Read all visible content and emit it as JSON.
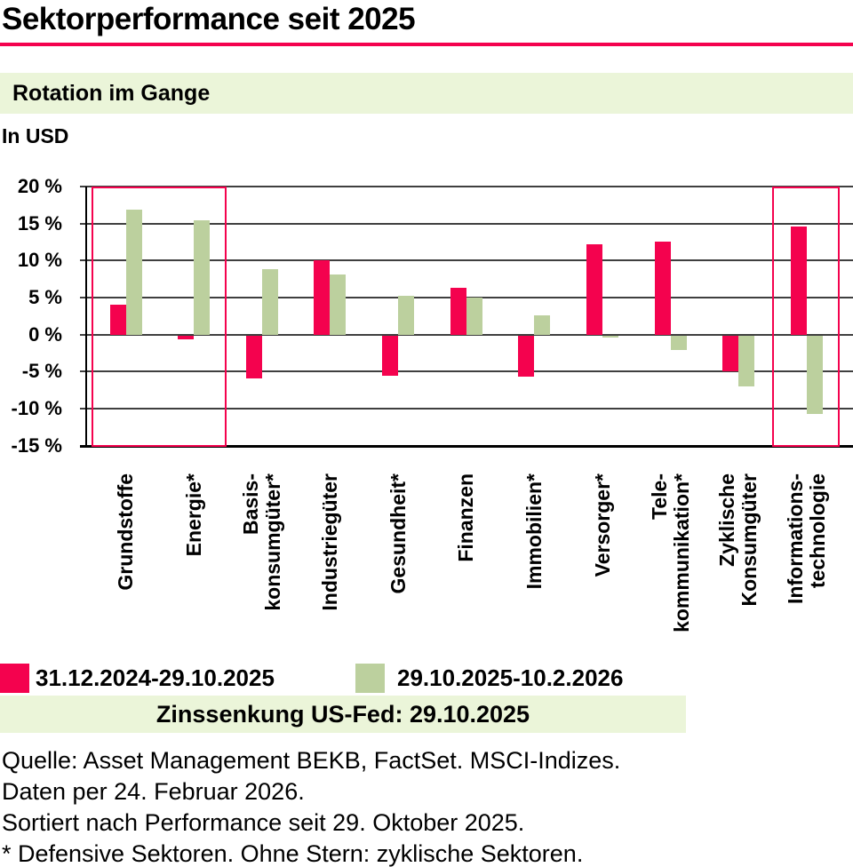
{
  "header": {
    "title": "Sektorperformance seit 2025"
  },
  "subtitle_banner": {
    "text": "Rotation im Gange"
  },
  "currency_note": "In USD",
  "colors": {
    "accent_pink": "#F4024E",
    "bar_green": "#BCD09E",
    "banner_green": "#EBF5D9",
    "gridline": "#3F3F3F",
    "axis": "#000000"
  },
  "chart_data": {
    "type": "bar",
    "title": "Sektorperformance seit 2025",
    "unit": "%",
    "ylabel": "",
    "xlabel": "",
    "ylim": [
      -15,
      20
    ],
    "grid": "horizontal",
    "legend_position": "bottom",
    "yticks": {
      "labels": [
        "20 %",
        "15 %",
        "10 %",
        "5 %",
        "0 %",
        "-5 %",
        "-10 %",
        "-15 %"
      ],
      "values": [
        20,
        15,
        10,
        5,
        0,
        -5,
        -10,
        -15
      ]
    },
    "categories": [
      [
        "Grundstoffe"
      ],
      [
        "Energie*"
      ],
      [
        "Basis-",
        "konsumgüter*"
      ],
      [
        "Industriegüter"
      ],
      [
        "Gesundheit*"
      ],
      [
        "Finanzen"
      ],
      [
        "Immobilien*"
      ],
      [
        "Versorger*"
      ],
      [
        "Tele-",
        "kommunikation*"
      ],
      [
        "Zyklische",
        "Konsumgüter"
      ],
      [
        "Informations-",
        "technologie"
      ]
    ],
    "series": [
      {
        "name": "31.12.2024-29.10.2025",
        "color": "#F4024E",
        "values": [
          4.1,
          -0.5,
          -5.8,
          10.0,
          -5.4,
          6.3,
          -5.5,
          12.2,
          12.6,
          -4.8,
          14.6
        ]
      },
      {
        "name": "29.10.2025-10.2.2026",
        "color": "#BCD09E",
        "values": [
          16.9,
          15.4,
          8.9,
          8.1,
          5.3,
          5.0,
          2.6,
          -0.3,
          -1.9,
          -6.9,
          -10.6
        ]
      }
    ],
    "highlighted_category_ranges": [
      [
        0,
        1
      ],
      [
        10,
        10
      ]
    ],
    "highlight_color": "#F4024E"
  },
  "legend": {
    "items": [
      {
        "label": "31.12.2024-29.10.2025",
        "color": "#F4024E"
      },
      {
        "label": "29.10.2025-10.2.2026",
        "color": "#BCD09E"
      }
    ]
  },
  "fed_note": {
    "text": "Zinssenkung US-Fed: 29.10.2025"
  },
  "footnotes": [
    "Quelle: Asset Management BEKB, FactSet. MSCI-Indizes.",
    "Daten per 24. Februar 2026.",
    "Sortiert nach Performance seit 29. Oktober 2025.",
    "* Defensive Sektoren. Ohne Stern: zyklische Sektoren."
  ]
}
